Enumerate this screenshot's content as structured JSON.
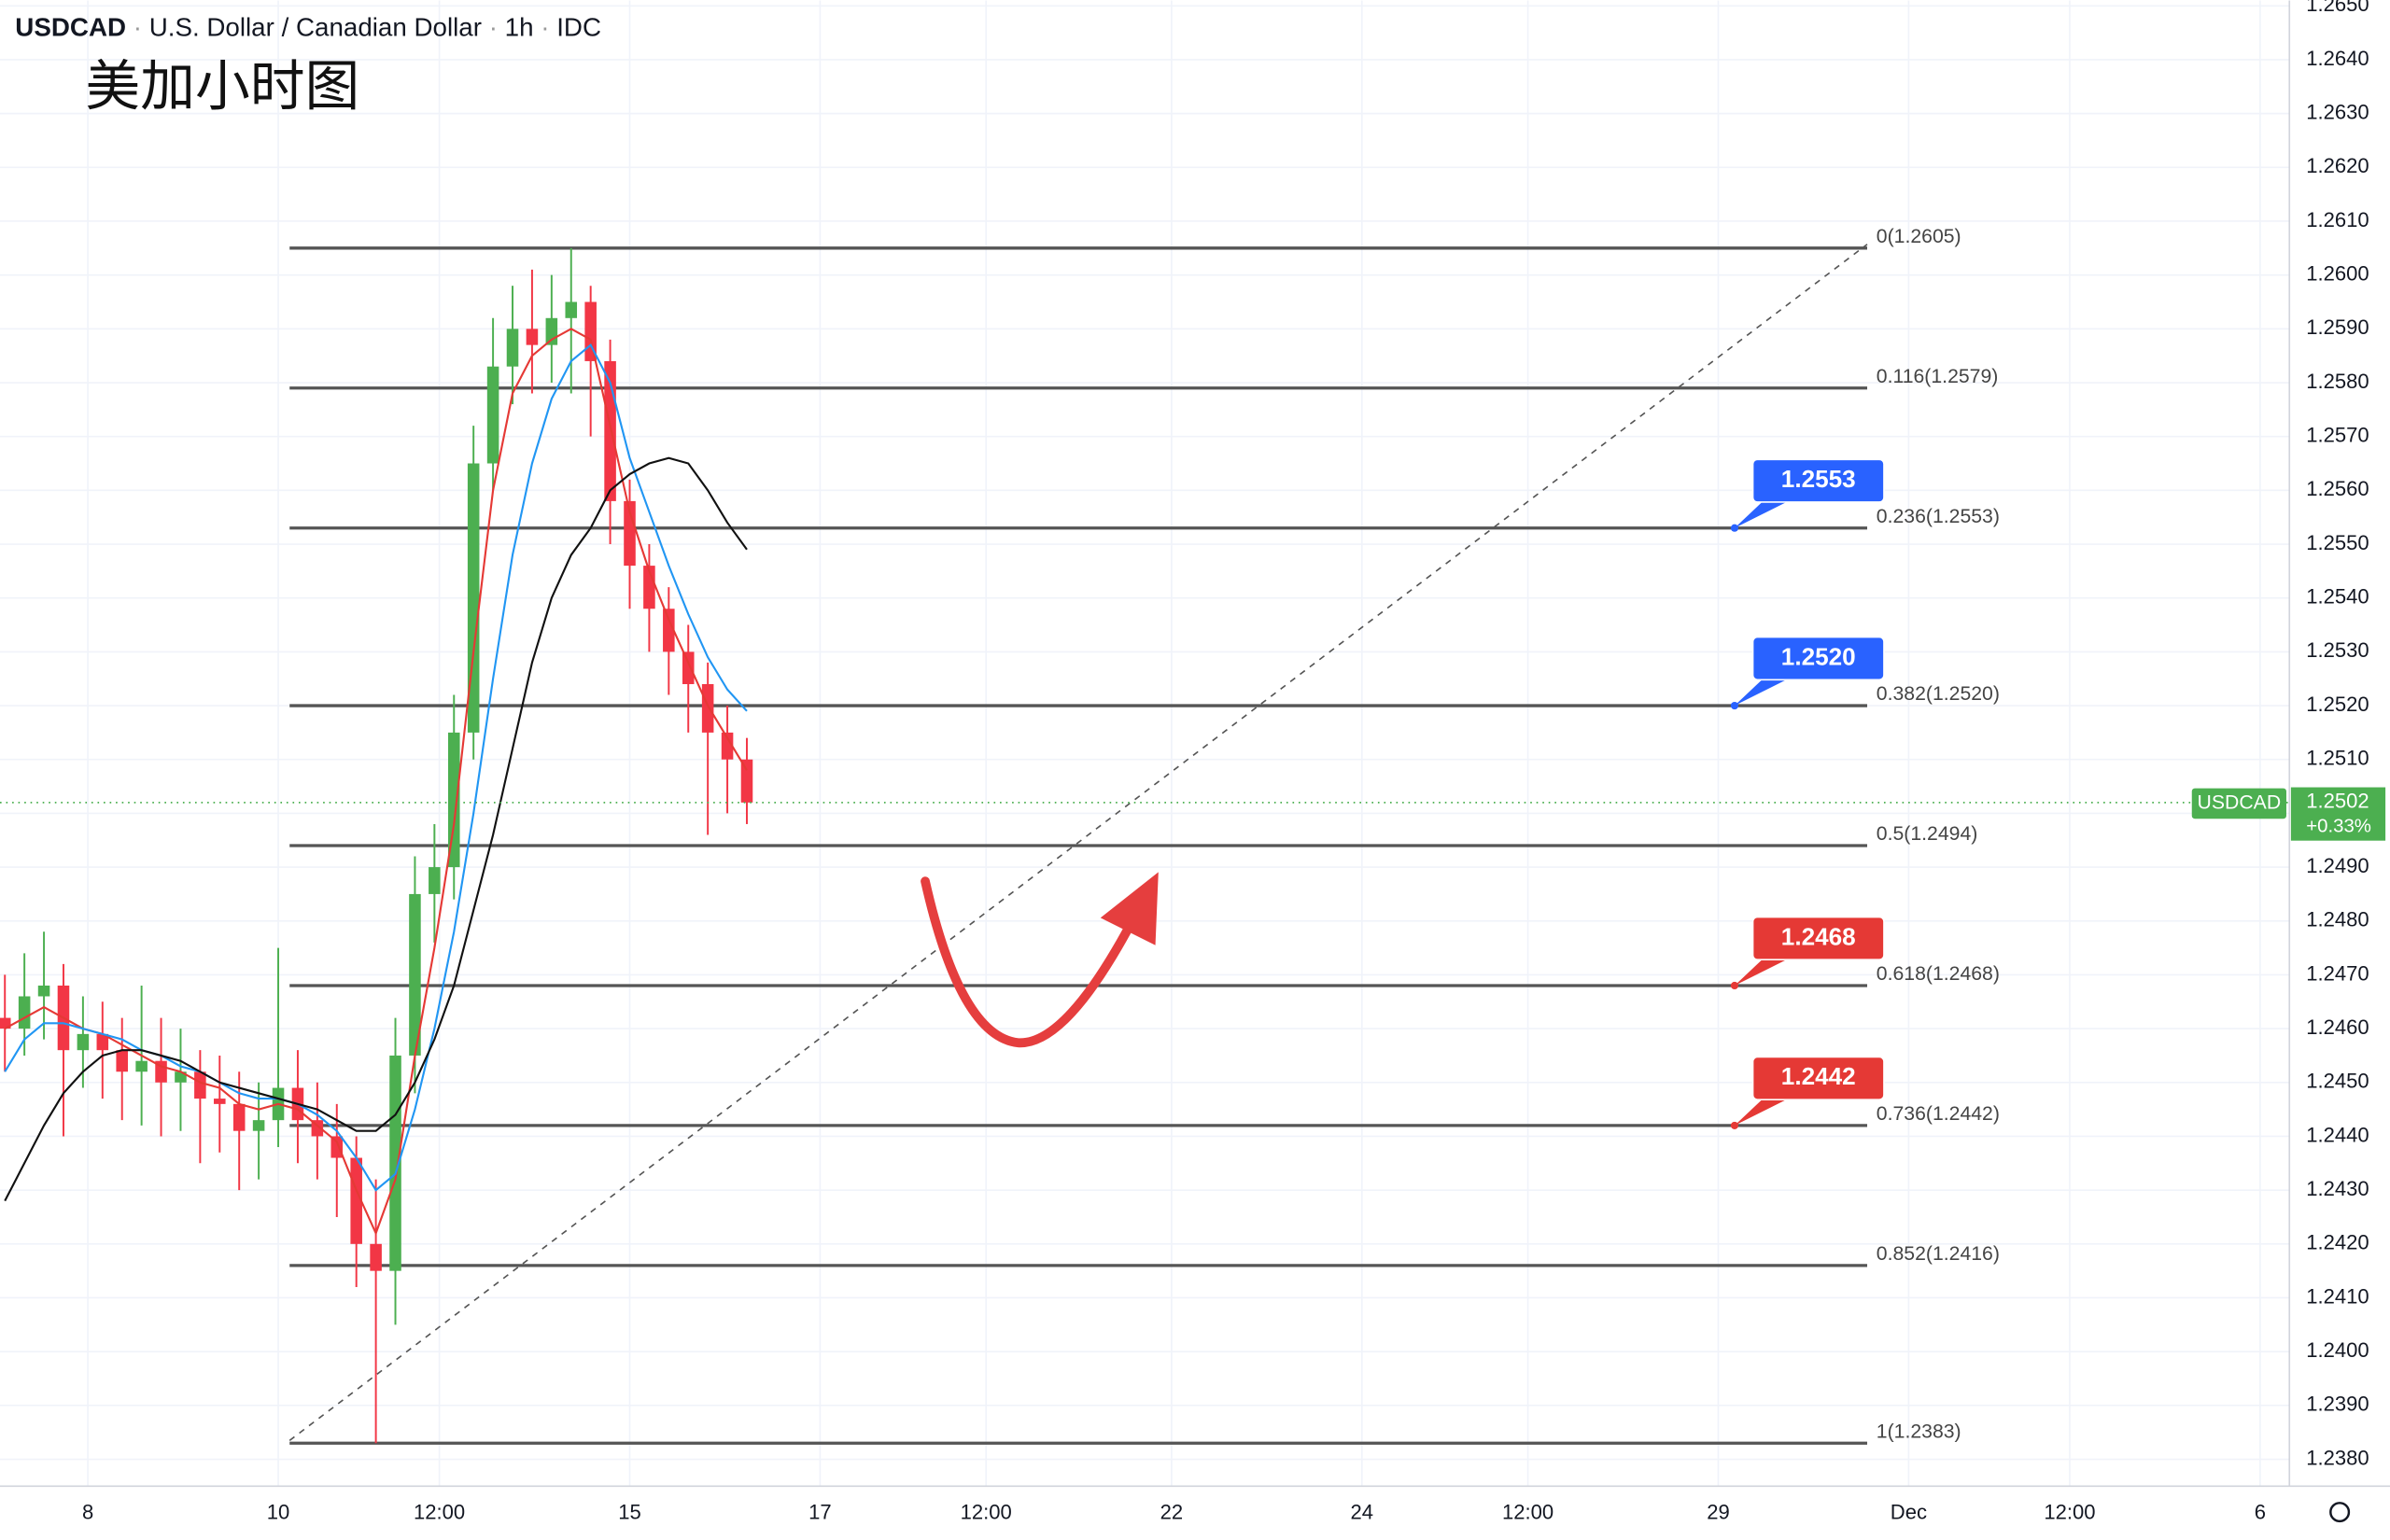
{
  "chart_data": {
    "type": "candlestick",
    "symbol": "USDCAD",
    "description": "U.S. Dollar / Canadian Dollar",
    "interval": "1h",
    "source": "IDC",
    "title": "美加小时图",
    "up_color": "#4caf50",
    "down_color": "#f23645",
    "x": [
      0,
      4,
      8,
      12,
      16,
      20,
      24,
      28,
      32,
      36,
      40,
      44,
      48,
      52,
      56,
      60,
      64,
      68,
      72,
      76,
      80,
      84,
      88,
      92,
      96,
      100,
      104,
      108,
      112,
      116,
      120,
      124,
      128,
      132,
      136,
      140,
      144,
      148,
      152
    ],
    "open": [
      1.2462,
      1.246,
      1.2466,
      1.2468,
      1.2456,
      1.2459,
      1.2456,
      1.2452,
      1.2454,
      1.245,
      1.2452,
      1.2447,
      1.2446,
      1.2441,
      1.2443,
      1.2449,
      1.2443,
      1.244,
      1.2436,
      1.242,
      1.2415,
      1.2455,
      1.2485,
      1.249,
      1.2515,
      1.2565,
      1.2583,
      1.259,
      1.2587,
      1.2592,
      1.2595,
      1.2584,
      1.2558,
      1.2546,
      1.2538,
      1.253,
      1.2524,
      1.2515,
      1.251
    ],
    "high": [
      1.247,
      1.2474,
      1.2478,
      1.2472,
      1.2466,
      1.2465,
      1.2462,
      1.2468,
      1.2462,
      1.246,
      1.2456,
      1.2455,
      1.2452,
      1.245,
      1.2475,
      1.2456,
      1.245,
      1.2446,
      1.244,
      1.2432,
      1.2462,
      1.2492,
      1.2498,
      1.2522,
      1.2572,
      1.2592,
      1.2598,
      1.2601,
      1.26,
      1.2605,
      1.2598,
      1.2588,
      1.2562,
      1.255,
      1.2542,
      1.2535,
      1.2528,
      1.252,
      1.2514
    ],
    "low": [
      1.2452,
      1.2455,
      1.2458,
      1.244,
      1.2449,
      1.2447,
      1.2443,
      1.2442,
      1.244,
      1.2441,
      1.2435,
      1.2437,
      1.243,
      1.2432,
      1.2438,
      1.2435,
      1.2432,
      1.2425,
      1.2412,
      1.2383,
      1.2405,
      1.2448,
      1.2476,
      1.2484,
      1.251,
      1.256,
      1.2576,
      1.2578,
      1.258,
      1.2578,
      1.257,
      1.255,
      1.2538,
      1.253,
      1.2522,
      1.2515,
      1.2496,
      1.25,
      1.2498
    ],
    "close": [
      1.246,
      1.2466,
      1.2468,
      1.2456,
      1.2459,
      1.2456,
      1.2452,
      1.2454,
      1.245,
      1.2452,
      1.2447,
      1.2446,
      1.2441,
      1.2443,
      1.2449,
      1.2443,
      1.244,
      1.2436,
      1.242,
      1.2415,
      1.2455,
      1.2485,
      1.249,
      1.2515,
      1.2565,
      1.2583,
      1.259,
      1.2587,
      1.2592,
      1.2595,
      1.2584,
      1.2558,
      1.2546,
      1.2538,
      1.253,
      1.2524,
      1.2515,
      1.251,
      1.2502
    ],
    "series": [
      {
        "color": "#e53935",
        "values": [
          1.246,
          1.2462,
          1.2464,
          1.2462,
          1.246,
          1.2459,
          1.2457,
          1.2455,
          1.2453,
          1.2452,
          1.245,
          1.2449,
          1.2446,
          1.2445,
          1.2446,
          1.2445,
          1.2442,
          1.2439,
          1.243,
          1.2422,
          1.2432,
          1.2455,
          1.2475,
          1.2498,
          1.253,
          1.256,
          1.2578,
          1.2585,
          1.2588,
          1.259,
          1.2588,
          1.2572,
          1.2556,
          1.2545,
          1.2536,
          1.2528,
          1.252,
          1.2514,
          1.2508
        ]
      },
      {
        "color": "#2196f3",
        "values": [
          1.2452,
          1.2458,
          1.2461,
          1.2461,
          1.246,
          1.2459,
          1.2458,
          1.2456,
          1.2455,
          1.2453,
          1.2452,
          1.245,
          1.2448,
          1.2447,
          1.2447,
          1.2446,
          1.2444,
          1.2441,
          1.2436,
          1.243,
          1.2433,
          1.2445,
          1.246,
          1.2478,
          1.25,
          1.2525,
          1.2548,
          1.2565,
          1.2577,
          1.2584,
          1.2587,
          1.258,
          1.2566,
          1.2556,
          1.2546,
          1.2537,
          1.2529,
          1.2523,
          1.2519
        ]
      },
      {
        "color": "#111111",
        "values": [
          1.2428,
          1.2435,
          1.2442,
          1.2448,
          1.2452,
          1.2455,
          1.2456,
          1.2456,
          1.2455,
          1.2454,
          1.2452,
          1.245,
          1.2449,
          1.2448,
          1.2447,
          1.2446,
          1.2445,
          1.2443,
          1.2441,
          1.2441,
          1.2444,
          1.245,
          1.2458,
          1.2468,
          1.2482,
          1.2496,
          1.2512,
          1.2528,
          1.254,
          1.2548,
          1.2553,
          1.256,
          1.2563,
          1.2565,
          1.2566,
          1.2565,
          1.256,
          1.2554,
          1.2549
        ]
      }
    ],
    "xlim": [
      -1,
      468
    ],
    "xticks": [
      {
        "value": 17,
        "label": "8"
      },
      {
        "value": 56,
        "label": "10"
      },
      {
        "value": 89,
        "label": "12:00"
      },
      {
        "value": 128,
        "label": "15"
      },
      {
        "value": 167,
        "label": "17"
      },
      {
        "value": 201,
        "label": "12:00"
      },
      {
        "value": 239,
        "label": "22"
      },
      {
        "value": 278,
        "label": "24"
      },
      {
        "value": 312,
        "label": "12:00"
      },
      {
        "value": 351,
        "label": "29"
      },
      {
        "value": 390,
        "label": "Dec"
      },
      {
        "value": 423,
        "label": "12:00"
      },
      {
        "value": 462,
        "label": "6"
      }
    ],
    "ylim": [
      1.2375,
      1.2651
    ],
    "yticks": [
      {
        "value": 1.238,
        "label": "1.2380"
      },
      {
        "value": 1.239,
        "label": "1.2390"
      },
      {
        "value": 1.24,
        "label": "1.2400"
      },
      {
        "value": 1.241,
        "label": "1.2410"
      },
      {
        "value": 1.242,
        "label": "1.2420"
      },
      {
        "value": 1.243,
        "label": "1.2430"
      },
      {
        "value": 1.244,
        "label": "1.2440"
      },
      {
        "value": 1.245,
        "label": "1.2450"
      },
      {
        "value": 1.246,
        "label": "1.2460"
      },
      {
        "value": 1.247,
        "label": "1.2470"
      },
      {
        "value": 1.248,
        "label": "1.2480"
      },
      {
        "value": 1.249,
        "label": "1.2490"
      },
      {
        "value": 1.25,
        "label": "1.2500"
      },
      {
        "value": 1.251,
        "label": "1.2510"
      },
      {
        "value": 1.252,
        "label": "1.2520"
      },
      {
        "value": 1.253,
        "label": "1.2530"
      },
      {
        "value": 1.254,
        "label": "1.2540"
      },
      {
        "value": 1.255,
        "label": "1.2550"
      },
      {
        "value": 1.256,
        "label": "1.2560"
      },
      {
        "value": 1.257,
        "label": "1.2570"
      },
      {
        "value": 1.258,
        "label": "1.2580"
      },
      {
        "value": 1.259,
        "label": "1.2590"
      },
      {
        "value": 1.26,
        "label": "1.2600"
      },
      {
        "value": 1.261,
        "label": "1.2610"
      },
      {
        "value": 1.262,
        "label": "1.2620"
      },
      {
        "value": 1.263,
        "label": "1.2630"
      },
      {
        "value": 1.264,
        "label": "1.2640"
      },
      {
        "value": 1.265,
        "label": "1.2650"
      }
    ],
    "grid": true,
    "fib_levels": [
      {
        "value": 1.2605,
        "label": "0(1.2605)"
      },
      {
        "value": 1.2579,
        "label": "0.116(1.2579)"
      },
      {
        "value": 1.2553,
        "label": "0.236(1.2553)"
      },
      {
        "value": 1.252,
        "label": "0.382(1.2520)"
      },
      {
        "value": 1.2494,
        "label": "0.5(1.2494)"
      },
      {
        "value": 1.2468,
        "label": "0.618(1.2468)"
      },
      {
        "value": 1.2442,
        "label": "0.736(1.2442)"
      },
      {
        "value": 1.2416,
        "label": "0.852(1.2416)"
      },
      {
        "value": 1.2383,
        "label": "1(1.2383)"
      }
    ],
    "price_tags": [
      {
        "value": 1.2553,
        "label": "1.2553",
        "color": "#2962ff"
      },
      {
        "value": 1.252,
        "label": "1.2520",
        "color": "#2962ff"
      },
      {
        "value": 1.2468,
        "label": "1.2468",
        "color": "#e53935"
      },
      {
        "value": 1.2442,
        "label": "1.2442",
        "color": "#e53935"
      }
    ],
    "last_price": 1.2502,
    "change": {
      "value": 0.33,
      "label": "+0.33%"
    }
  }
}
